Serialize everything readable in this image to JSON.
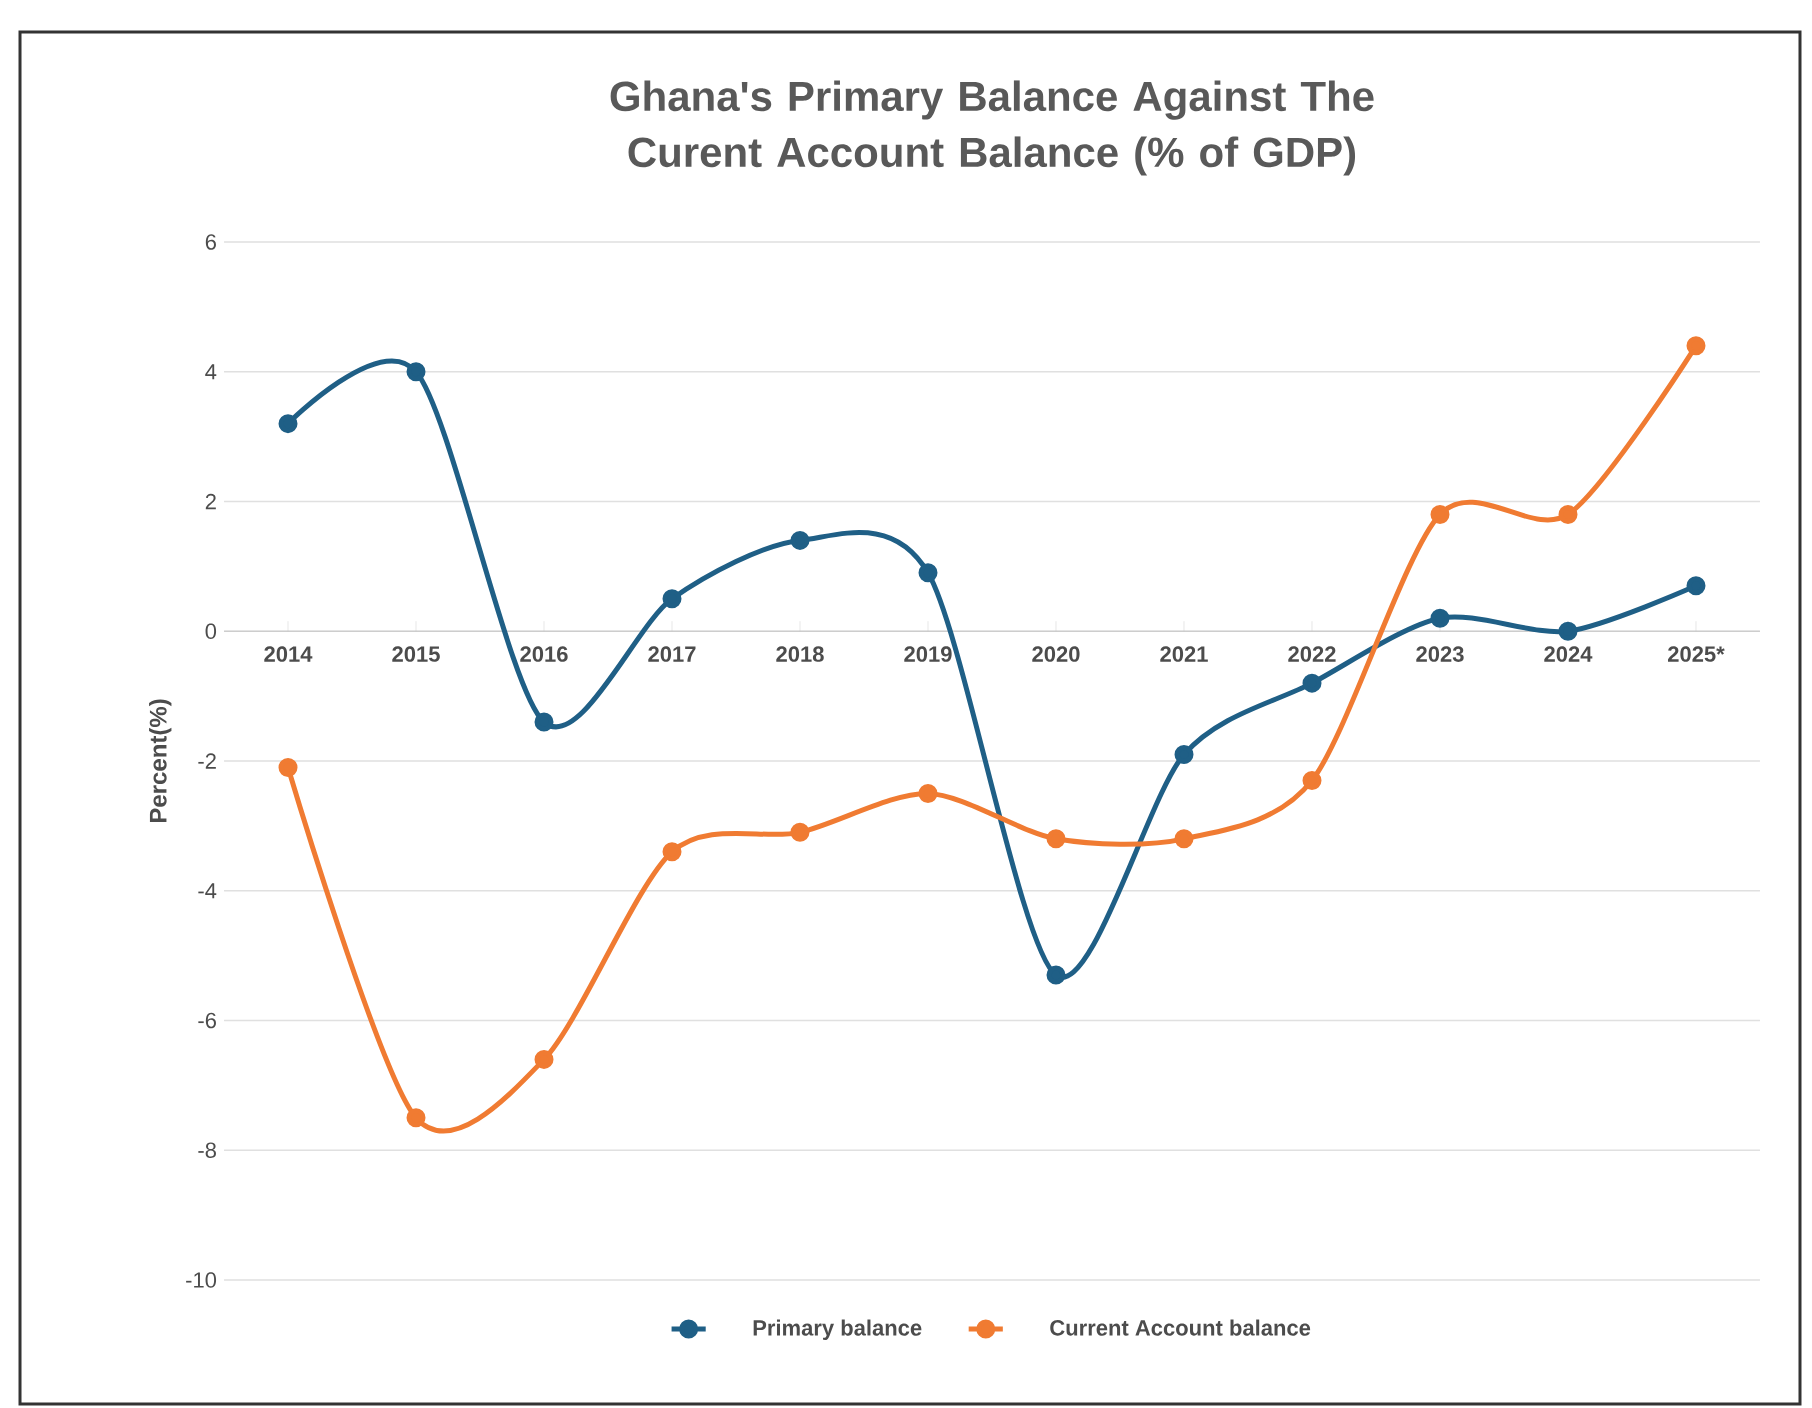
{
  "chart_data": {
    "type": "line",
    "title": "Ghana's Primary Balance Against The Curent Account Balance (% of GDP)",
    "ylabel": "Percent(%)",
    "categories": [
      "2014",
      "2015",
      "2016",
      "2017",
      "2018",
      "2019",
      "2020",
      "2021",
      "2022",
      "2023",
      "2024",
      "2025*"
    ],
    "series": [
      {
        "name": "Primary balance",
        "color": "#1f5f86",
        "values": [
          3.2,
          4.0,
          -1.4,
          0.5,
          1.4,
          0.9,
          -5.3,
          -1.9,
          -0.8,
          0.2,
          0.0,
          0.7
        ]
      },
      {
        "name": "Current Account balance",
        "color": "#f07b32",
        "values": [
          -2.1,
          -7.5,
          -6.6,
          -3.4,
          -3.1,
          -2.5,
          -3.2,
          -3.2,
          -2.3,
          1.8,
          1.8,
          4.4
        ]
      }
    ],
    "ylim": [
      -10,
      6
    ],
    "yticks": [
      -10,
      -8,
      -6,
      -4,
      -2,
      0,
      2,
      4,
      6
    ],
    "grid": "y",
    "legend": "bottom",
    "marker": "circle",
    "line_style": "solid"
  }
}
